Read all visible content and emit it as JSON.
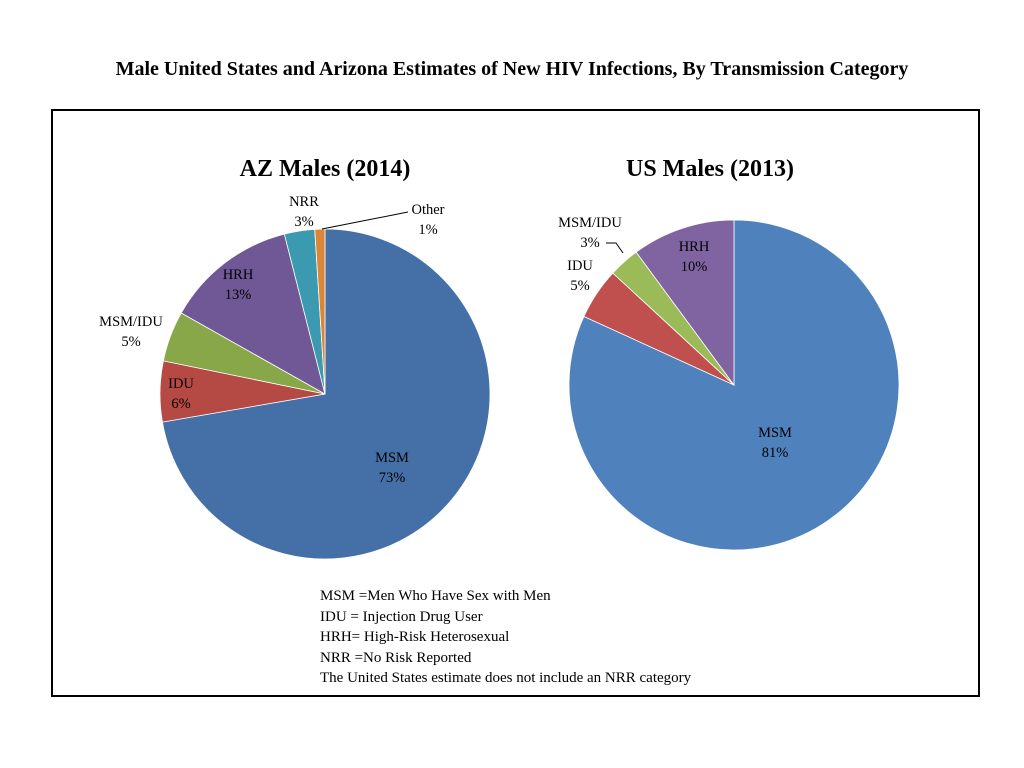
{
  "page_title": "Male United States and Arizona Estimates of New HIV Infections, By Transmission Category",
  "chart_data": [
    {
      "type": "pie",
      "title": "AZ Males (2014)",
      "slices": [
        {
          "label": "MSM",
          "value": 73,
          "text": "73%",
          "color": "#4570A7"
        },
        {
          "label": "IDU",
          "value": 6,
          "text": "6%",
          "color": "#B54A44"
        },
        {
          "label": "MSM/IDU",
          "value": 5,
          "text": "5%",
          "color": "#88A748"
        },
        {
          "label": "HRH",
          "value": 13,
          "text": "13%",
          "color": "#6F5895"
        },
        {
          "label": "NRR",
          "value": 3,
          "text": "3%",
          "color": "#3B9AB0"
        },
        {
          "label": "Other",
          "value": 1,
          "text": "1%",
          "color": "#DB8536"
        }
      ]
    },
    {
      "type": "pie",
      "title": "US Males (2013)",
      "slices": [
        {
          "label": "MSM",
          "value": 81,
          "text": "81%",
          "color": "#4F81BD"
        },
        {
          "label": "IDU",
          "value": 5,
          "text": "5%",
          "color": "#C0504D"
        },
        {
          "label": "MSM/IDU",
          "value": 3,
          "text": "3%",
          "color": "#9BBB59"
        },
        {
          "label": "HRH",
          "value": 10,
          "text": "10%",
          "color": "#8064A2"
        }
      ]
    }
  ],
  "notes": [
    "MSM =Men Who Have Sex with Men",
    "IDU = Injection Drug User",
    "HRH= High-Risk Heterosexual",
    "NRR =No Risk Reported",
    "The United States estimate does not include an NRR category"
  ]
}
